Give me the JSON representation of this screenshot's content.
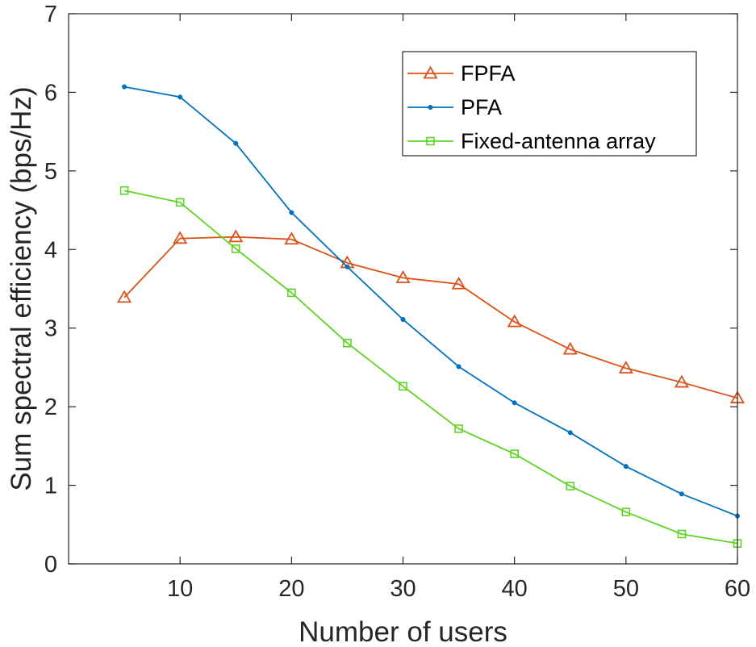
{
  "chart_data": {
    "type": "line",
    "title": "",
    "xlabel": "Number of users",
    "ylabel": "Sum spectral efficiency (bps/Hz)",
    "xlim": [
      0,
      60
    ],
    "ylim": [
      0,
      7
    ],
    "xticks": [
      10,
      20,
      30,
      40,
      50,
      60
    ],
    "yticks": [
      0,
      1,
      2,
      3,
      4,
      5,
      6,
      7
    ],
    "grid": false,
    "legend_position": "top-right",
    "x": [
      5,
      10,
      15,
      20,
      25,
      30,
      35,
      40,
      45,
      50,
      55,
      60
    ],
    "series": [
      {
        "name": "FPFA",
        "marker": "triangle",
        "color": "#D95319",
        "values": [
          3.39,
          4.14,
          4.16,
          4.13,
          3.83,
          3.64,
          3.56,
          3.08,
          2.73,
          2.49,
          2.31,
          2.11
        ]
      },
      {
        "name": "PFA",
        "marker": "dot",
        "color": "#0072BD",
        "values": [
          6.07,
          5.94,
          5.35,
          4.47,
          3.78,
          3.11,
          2.51,
          2.05,
          1.67,
          1.24,
          0.89,
          0.61
        ]
      },
      {
        "name": "Fixed-antenna array",
        "marker": "square",
        "color": "#5FD424",
        "values": [
          4.75,
          4.6,
          4.01,
          3.45,
          2.81,
          2.26,
          1.72,
          1.4,
          0.99,
          0.66,
          0.38,
          0.26
        ]
      }
    ]
  }
}
